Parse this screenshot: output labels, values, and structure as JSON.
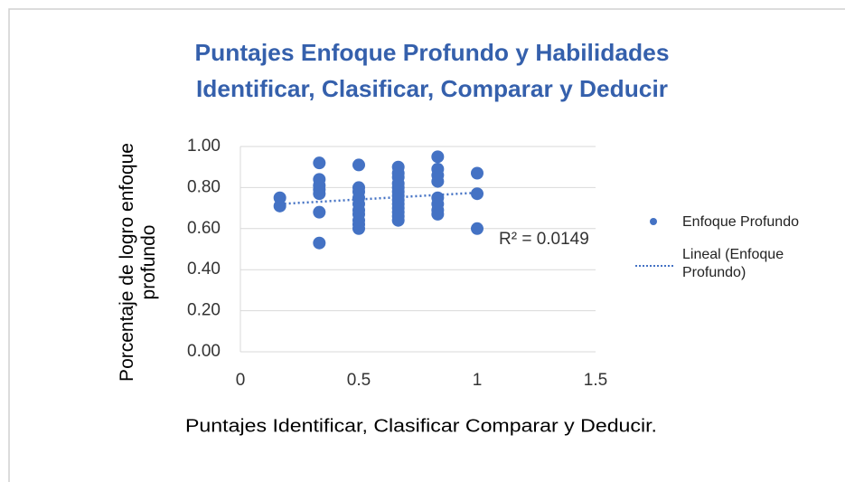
{
  "chart_data": {
    "type": "scatter",
    "title": [
      "Puntajes Enfoque Profundo y Habilidades",
      "Identificar, Clasificar, Comparar y Deducir"
    ],
    "x_label": "Puntajes Identificar, Clasificar Comparar y Deducir.",
    "y_label": "Porcentaje de logro enfoque profundo",
    "series": [
      {
        "name": "Enfoque Profundo",
        "color": "#4472c4",
        "x": [
          0.1667,
          0.1667,
          0.3333,
          0.3333,
          0.3333,
          0.3333,
          0.3333,
          0.3333,
          0.3333,
          0.5,
          0.5,
          0.5,
          0.5,
          0.5,
          0.5,
          0.5,
          0.5,
          0.5,
          0.5,
          0.6667,
          0.6667,
          0.6667,
          0.6667,
          0.6667,
          0.6667,
          0.6667,
          0.6667,
          0.6667,
          0.6667,
          0.6667,
          0.6667,
          0.6667,
          0.8333,
          0.8333,
          0.8333,
          0.8333,
          0.8333,
          0.8333,
          0.8333,
          0.8333,
          1,
          1,
          1
        ],
        "values": [
          0.75,
          0.71,
          0.92,
          0.84,
          0.81,
          0.79,
          0.77,
          0.68,
          0.53,
          0.91,
          0.8,
          0.78,
          0.75,
          0.72,
          0.69,
          0.67,
          0.64,
          0.62,
          0.6,
          0.9,
          0.87,
          0.85,
          0.82,
          0.8,
          0.78,
          0.76,
          0.74,
          0.72,
          0.7,
          0.68,
          0.66,
          0.64,
          0.95,
          0.89,
          0.86,
          0.83,
          0.75,
          0.72,
          0.69,
          0.67,
          0.87,
          0.77,
          0.6
        ]
      }
    ],
    "trendline": {
      "name": "Lineal (Enfoque Profundo)",
      "color": "#4472c4",
      "x": [
        0.1667,
        1
      ],
      "values": [
        0.72,
        0.775
      ],
      "annotation": "R² = 0.0149"
    },
    "xlim": [
      0,
      1.5
    ],
    "xticks": [
      0,
      0.5,
      1,
      1.5
    ],
    "ylim": [
      0,
      1
    ],
    "yticks": [
      {
        "value": 0,
        "label": "0.00"
      },
      {
        "value": 0.2,
        "label": "0.20"
      },
      {
        "value": 0.4,
        "label": "0.40"
      },
      {
        "value": 0.6,
        "label": "0.60"
      },
      {
        "value": 0.8,
        "label": "0.80"
      },
      {
        "value": 1,
        "label": "1.00"
      }
    ],
    "grid": true,
    "legend": "right"
  }
}
